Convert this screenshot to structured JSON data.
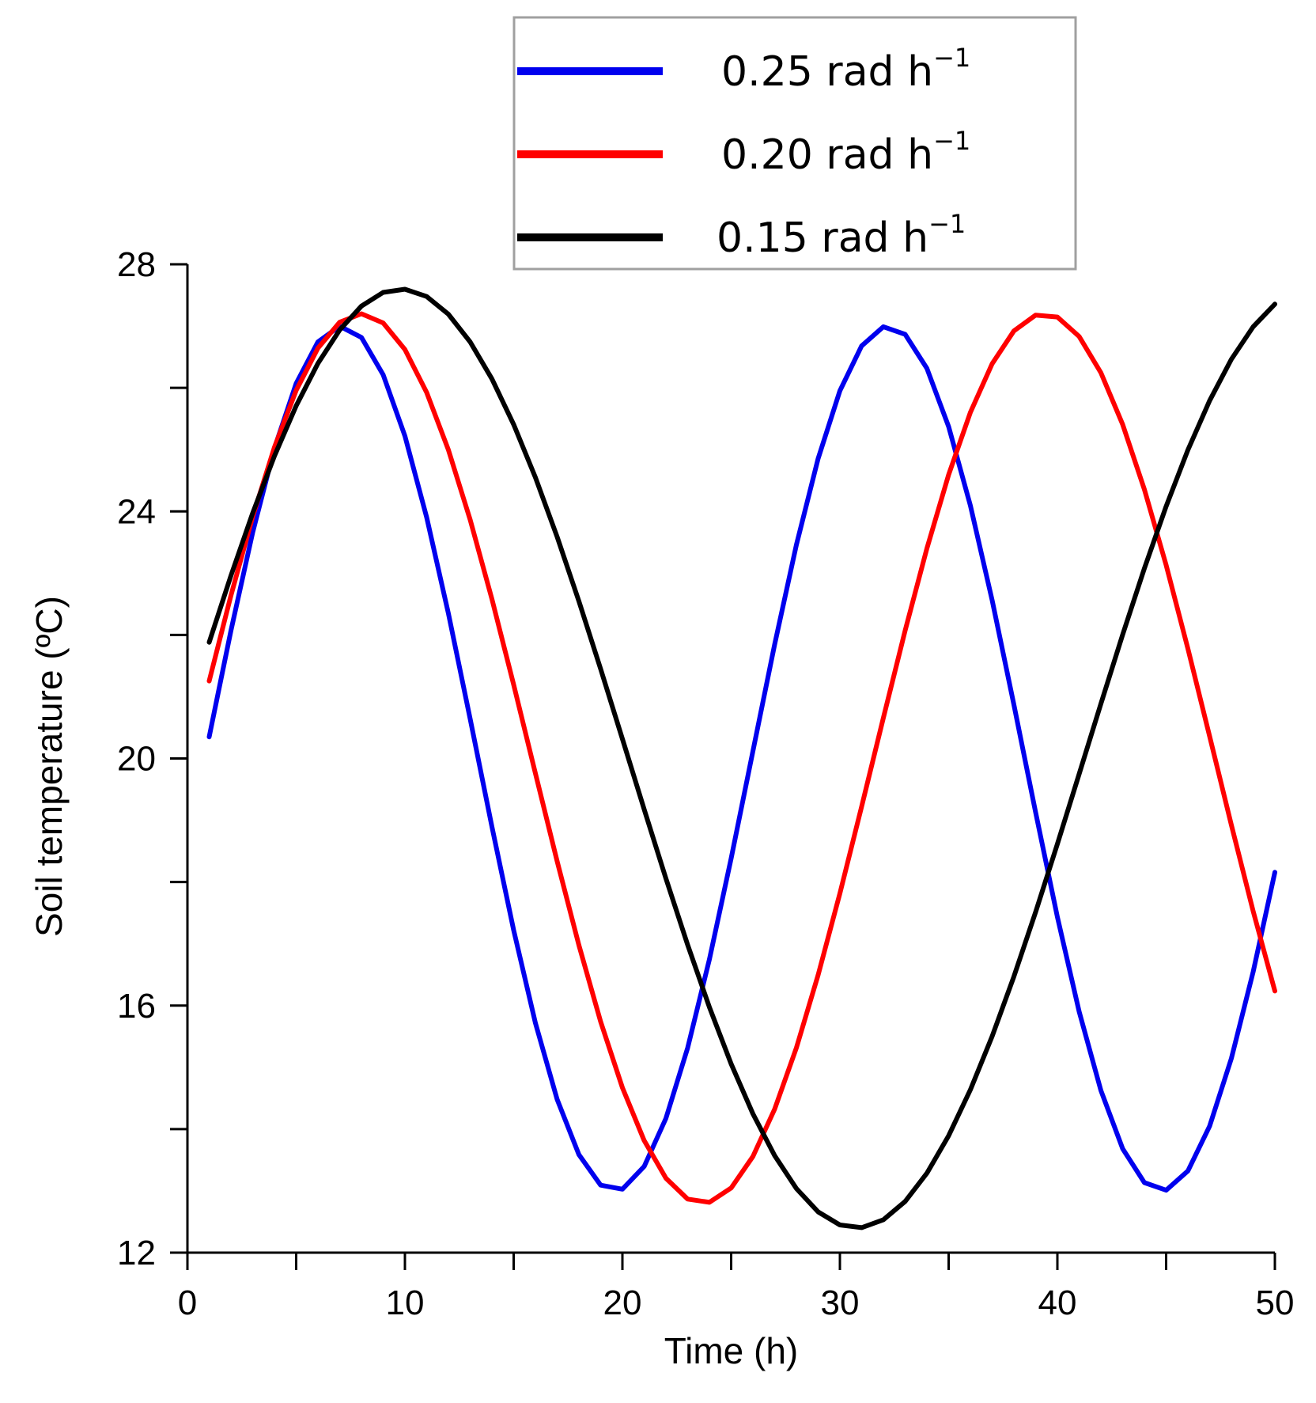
{
  "chart_data": {
    "type": "line",
    "title": "",
    "xlabel": "Time (h)",
    "ylabel": "Soil temperature (ºC)",
    "xlim": [
      0,
      50
    ],
    "ylim": [
      12,
      28
    ],
    "x_ticks": [
      0,
      10,
      20,
      30,
      40,
      50
    ],
    "y_ticks": [
      12,
      16,
      20,
      24,
      28
    ],
    "x_minor_step": 5,
    "y_minor_step": 2,
    "grid": false,
    "legend_position": "top-right",
    "series": [
      {
        "name": "0.25 rad h⁻¹",
        "legend_main": "0.25 rad h",
        "legend_sup": "−1",
        "color": "#0000ee",
        "omega": 0.25,
        "mean": 20,
        "amplitude": 7,
        "phase": -0.2
      },
      {
        "name": "0.20 rad h⁻¹",
        "legend_main": "0.20 rad h",
        "legend_sup": "−1",
        "color": "#ff0000",
        "omega": 0.2,
        "mean": 20,
        "amplitude": 7.2,
        "phase": -0.025
      },
      {
        "name": "0.15 rad h⁻¹",
        "legend_main": "0.15 rad h",
        "legend_sup": "−1",
        "color": "#000000",
        "omega": 0.15,
        "mean": 20,
        "amplitude": 7.6,
        "phase": 0.1
      }
    ],
    "x_start": 1,
    "x_end": 50,
    "x_step": 1
  }
}
